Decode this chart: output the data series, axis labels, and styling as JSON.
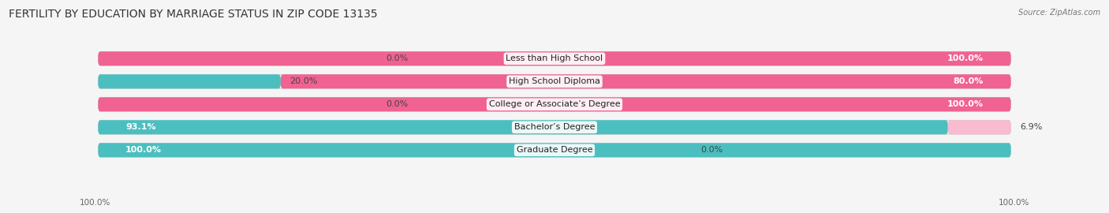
{
  "title": "FERTILITY BY EDUCATION BY MARRIAGE STATUS IN ZIP CODE 13135",
  "source": "Source: ZipAtlas.com",
  "categories": [
    "Less than High School",
    "High School Diploma",
    "College or Associate’s Degree",
    "Bachelor’s Degree",
    "Graduate Degree"
  ],
  "married": [
    0.0,
    20.0,
    0.0,
    93.1,
    100.0
  ],
  "unmarried": [
    100.0,
    80.0,
    100.0,
    6.9,
    0.0
  ],
  "married_color": "#4bbfbf",
  "unmarried_color": "#f06292",
  "unmarried_light_color": "#f8bbd0",
  "bg_color": "#f5f5f5",
  "bar_bg_color": "#e8e8e8",
  "bar_height": 0.62,
  "title_fontsize": 10,
  "label_fontsize": 8,
  "value_fontsize": 8,
  "legend_fontsize": 8.5,
  "axis_label_left": "100.0%",
  "axis_label_right": "100.0%"
}
